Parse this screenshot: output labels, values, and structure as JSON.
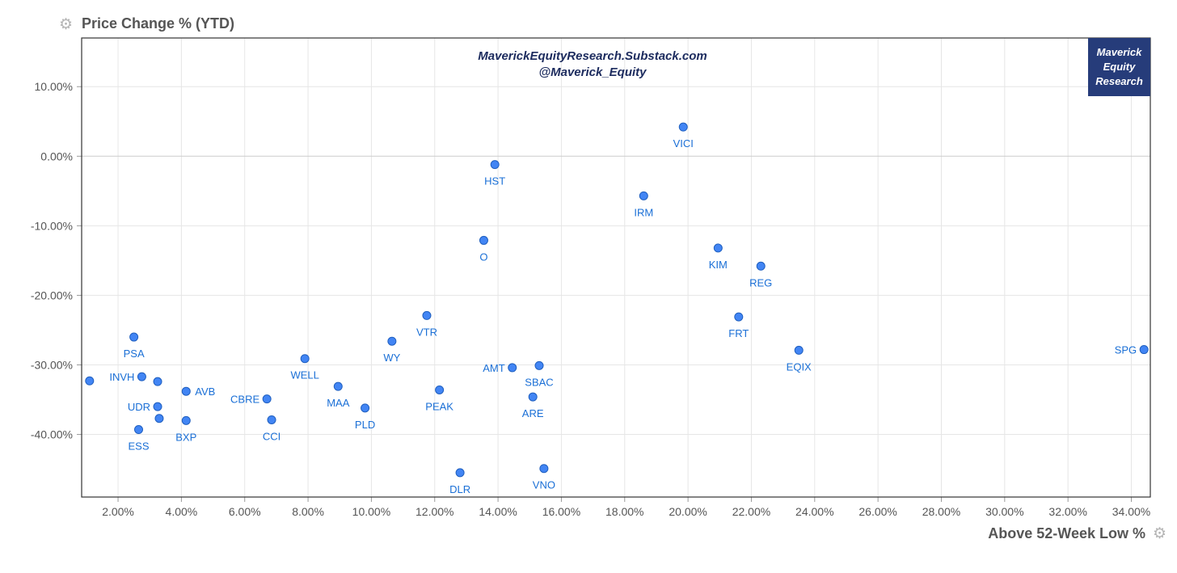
{
  "y_axis_title": "Price Change % (YTD)",
  "x_axis_title": "Above 52-Week Low %",
  "icons": {
    "settings": "gear-icon"
  },
  "watermark": {
    "line1": "MaverickEquityResearch.Substack.com",
    "line2": "@Maverick_Equity"
  },
  "badge": {
    "lines": [
      "Maverick",
      "Equity",
      "Research"
    ]
  },
  "colors": {
    "point_fill": "#4285f4",
    "point_stroke": "#1f5fbf",
    "label": "#1a6fd6",
    "badge_bg": "#263c7a",
    "grid": "#e6e6e6",
    "axis": "#333333"
  },
  "chart_data": {
    "type": "scatter",
    "xlabel": "Above 52-Week Low %",
    "ylabel": "Price Change % (YTD)",
    "xlim": [
      0.85,
      34.6
    ],
    "ylim": [
      -49.0,
      17.0
    ],
    "x_ticks": [
      2,
      4,
      6,
      8,
      10,
      12,
      14,
      16,
      18,
      20,
      22,
      24,
      26,
      28,
      30,
      32,
      34
    ],
    "y_ticks": [
      10,
      0,
      -10,
      -20,
      -30,
      -40
    ],
    "x_tick_labels": [
      "2.00%",
      "4.00%",
      "6.00%",
      "8.00%",
      "10.00%",
      "12.00%",
      "14.00%",
      "16.00%",
      "18.00%",
      "20.00%",
      "22.00%",
      "24.00%",
      "26.00%",
      "28.00%",
      "30.00%",
      "32.00%",
      "34.00%"
    ],
    "y_tick_labels": [
      "10.00%",
      "0.00%",
      "-10.00%",
      "-20.00%",
      "-30.00%",
      "-40.00%"
    ],
    "grid": true,
    "points": [
      {
        "label": "",
        "x": 1.1,
        "y": -32.3,
        "pos": "none"
      },
      {
        "label": "PSA",
        "x": 2.5,
        "y": -26.0,
        "pos": "below"
      },
      {
        "label": "INVH",
        "x": 2.75,
        "y": -31.7,
        "pos": "left"
      },
      {
        "label": "",
        "x": 3.25,
        "y": -32.4,
        "pos": "none"
      },
      {
        "label": "UDR",
        "x": 3.25,
        "y": -36.0,
        "pos": "left"
      },
      {
        "label": "",
        "x": 3.3,
        "y": -37.7,
        "pos": "none"
      },
      {
        "label": "ESS",
        "x": 2.65,
        "y": -39.3,
        "pos": "below"
      },
      {
        "label": "AVB",
        "x": 4.15,
        "y": -33.8,
        "pos": "right"
      },
      {
        "label": "BXP",
        "x": 4.15,
        "y": -38.0,
        "pos": "below"
      },
      {
        "label": "CBRE",
        "x": 6.7,
        "y": -34.9,
        "pos": "left"
      },
      {
        "label": "CCI",
        "x": 6.85,
        "y": -37.9,
        "pos": "below"
      },
      {
        "label": "WELL",
        "x": 7.9,
        "y": -29.1,
        "pos": "below"
      },
      {
        "label": "MAA",
        "x": 8.95,
        "y": -33.1,
        "pos": "below"
      },
      {
        "label": "PLD",
        "x": 9.8,
        "y": -36.2,
        "pos": "below"
      },
      {
        "label": "WY",
        "x": 10.65,
        "y": -26.6,
        "pos": "below"
      },
      {
        "label": "VTR",
        "x": 11.75,
        "y": -22.9,
        "pos": "below"
      },
      {
        "label": "PEAK",
        "x": 12.15,
        "y": -33.6,
        "pos": "below"
      },
      {
        "label": "DLR",
        "x": 12.8,
        "y": -45.5,
        "pos": "below"
      },
      {
        "label": "O",
        "x": 13.55,
        "y": -12.1,
        "pos": "below"
      },
      {
        "label": "HST",
        "x": 13.9,
        "y": -1.2,
        "pos": "below"
      },
      {
        "label": "AMT",
        "x": 14.45,
        "y": -30.4,
        "pos": "left"
      },
      {
        "label": "ARE",
        "x": 15.1,
        "y": -34.6,
        "pos": "below"
      },
      {
        "label": "SBAC",
        "x": 15.3,
        "y": -30.1,
        "pos": "below"
      },
      {
        "label": "VNO",
        "x": 15.45,
        "y": -44.9,
        "pos": "below"
      },
      {
        "label": "IRM",
        "x": 18.6,
        "y": -5.7,
        "pos": "below"
      },
      {
        "label": "VICI",
        "x": 19.85,
        "y": 4.2,
        "pos": "below"
      },
      {
        "label": "KIM",
        "x": 20.95,
        "y": -13.2,
        "pos": "below"
      },
      {
        "label": "REG",
        "x": 22.3,
        "y": -15.8,
        "pos": "below"
      },
      {
        "label": "FRT",
        "x": 21.6,
        "y": -23.1,
        "pos": "below"
      },
      {
        "label": "EQIX",
        "x": 23.5,
        "y": -27.9,
        "pos": "below"
      },
      {
        "label": "SPG",
        "x": 34.4,
        "y": -27.8,
        "pos": "left"
      }
    ]
  }
}
